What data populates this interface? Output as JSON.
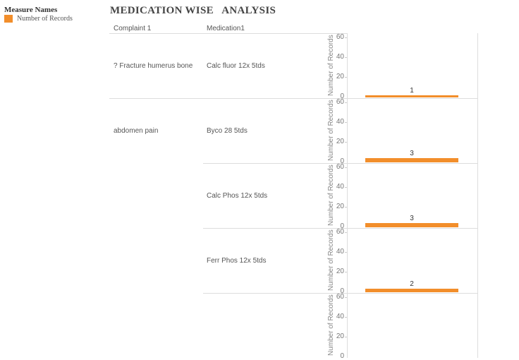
{
  "legend": {
    "title": "Measure Names",
    "items": [
      {
        "label": "Number of Records",
        "color": "#f28e2b"
      }
    ]
  },
  "title": "MEDICATION WISE   ANALYSIS",
  "headers": {
    "complaint": "Complaint 1",
    "medication": "Medication1"
  },
  "axis": {
    "title": "Number of Records",
    "ticks": [
      "60",
      "40",
      "20",
      "0"
    ]
  },
  "rows": [
    {
      "complaint": "? Fracture humerus bone",
      "medication": "Calc fluor 12x 5tds",
      "value": 1,
      "label": "1"
    },
    {
      "complaint": "abdomen pain",
      "medication": "Byco 28 5tds",
      "value": 3,
      "label": "3"
    },
    {
      "complaint": "",
      "medication": "Calc Phos 12x 5tds",
      "value": 3,
      "label": "3"
    },
    {
      "complaint": "",
      "medication": "Ferr Phos 12x 5tds",
      "value": 2,
      "label": "2"
    },
    {
      "complaint": "",
      "medication": "",
      "value": null,
      "label": ""
    }
  ],
  "chart_data": {
    "type": "bar",
    "orientation": "vertical",
    "title": "MEDICATION WISE   ANALYSIS",
    "xlabel": "",
    "ylabel": "Number of Records",
    "ylim": [
      0,
      60
    ],
    "yticks": [
      0,
      20,
      40,
      60
    ],
    "legend": {
      "title": "Measure Names",
      "entries": [
        "Number of Records"
      ],
      "position": "top-left"
    },
    "categories": [
      "? Fracture humerus bone | Calc fluor 12x 5tds",
      "abdomen pain | Byco 28 5tds",
      "abdomen pain | Calc Phos 12x 5tds",
      "abdomen pain | Ferr Phos 12x 5tds"
    ],
    "series": [
      {
        "name": "Number of Records",
        "color": "#f28e2b",
        "values": [
          1,
          3,
          3,
          2
        ]
      }
    ]
  }
}
